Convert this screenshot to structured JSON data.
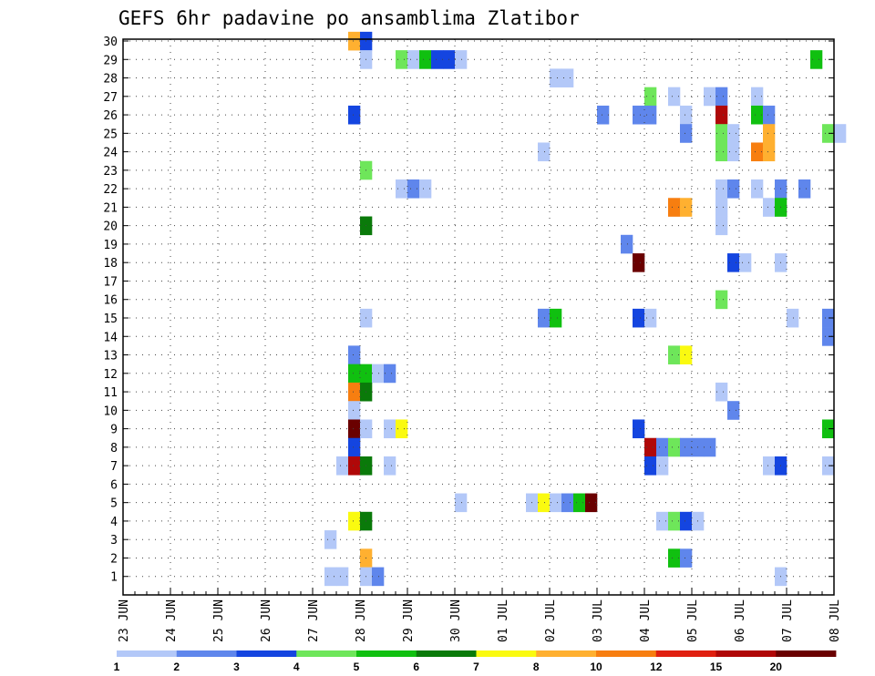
{
  "chart_data": {
    "type": "heatmap",
    "title": "GEFS 6hr padavine po ansamblima Zlatibor",
    "xlabel": "",
    "ylabel": "",
    "x_tick_labels": [
      "23 JUN",
      "24 JUN",
      "25 JUN",
      "26 JUN",
      "27 JUN",
      "28 JUN",
      "29 JUN",
      "30 JUN",
      "01 JUL",
      "02 JUL",
      "03 JUL",
      "04 JUL",
      "05 JUL",
      "06 JUL",
      "07 JUL",
      "08 JUL"
    ],
    "x_range_days": [
      0,
      15
    ],
    "y_tick_labels": [
      "1",
      "2",
      "3",
      "4",
      "5",
      "6",
      "7",
      "8",
      "9",
      "10",
      "11",
      "12",
      "13",
      "14",
      "15",
      "16",
      "17",
      "18",
      "19",
      "20",
      "21",
      "22",
      "23",
      "24",
      "25",
      "26",
      "27",
      "28",
      "29",
      "30"
    ],
    "y_range": [
      0,
      30
    ],
    "grid": true,
    "legend_placement": "bottom",
    "color_scale": {
      "labels": [
        "1",
        "2",
        "3",
        "4",
        "5",
        "6",
        "7",
        "8",
        "10",
        "12",
        "15",
        "20"
      ],
      "colors": [
        "#b3c8f8",
        "#5f86ec",
        "#1445e0",
        "#6ee65a",
        "#10c010",
        "#0a7a0a",
        "#fafa10",
        "#ffb030",
        "#f77e10",
        "#e02010",
        "#b00808",
        "#6a0000"
      ]
    },
    "cells": [
      {
        "m": 30,
        "t": 4.75,
        "c": 7
      },
      {
        "m": 30,
        "t": 5.0,
        "c": 2
      },
      {
        "m": 29,
        "t": 5.0,
        "c": 0
      },
      {
        "m": 29,
        "t": 5.75,
        "c": 3
      },
      {
        "m": 29,
        "t": 6.0,
        "c": 0
      },
      {
        "m": 29,
        "t": 6.25,
        "c": 4
      },
      {
        "m": 29,
        "t": 6.5,
        "c": 2
      },
      {
        "m": 29,
        "t": 6.75,
        "c": 2
      },
      {
        "m": 29,
        "t": 7.0,
        "c": 0
      },
      {
        "m": 29,
        "t": 14.5,
        "c": 4
      },
      {
        "m": 28,
        "t": 9.0,
        "c": 0
      },
      {
        "m": 28,
        "t": 9.25,
        "c": 0
      },
      {
        "m": 27,
        "t": 11.0,
        "c": 3
      },
      {
        "m": 27,
        "t": 11.5,
        "c": 0
      },
      {
        "m": 27,
        "t": 12.25,
        "c": 0
      },
      {
        "m": 27,
        "t": 12.5,
        "c": 1
      },
      {
        "m": 27,
        "t": 13.25,
        "c": 0
      },
      {
        "m": 26,
        "t": 4.75,
        "c": 2
      },
      {
        "m": 26,
        "t": 10.0,
        "c": 1
      },
      {
        "m": 26,
        "t": 10.75,
        "c": 1
      },
      {
        "m": 26,
        "t": 11.0,
        "c": 1
      },
      {
        "m": 26,
        "t": 11.75,
        "c": 0
      },
      {
        "m": 26,
        "t": 12.5,
        "c": 10
      },
      {
        "m": 26,
        "t": 13.25,
        "c": 4
      },
      {
        "m": 26,
        "t": 13.5,
        "c": 1
      },
      {
        "m": 25,
        "t": 11.75,
        "c": 1
      },
      {
        "m": 25,
        "t": 12.5,
        "c": 3
      },
      {
        "m": 25,
        "t": 12.75,
        "c": 0
      },
      {
        "m": 25,
        "t": 13.5,
        "c": 7
      },
      {
        "m": 25,
        "t": 14.75,
        "c": 3
      },
      {
        "m": 25,
        "t": 15.0,
        "c": 0
      },
      {
        "m": 24,
        "t": 8.75,
        "c": 0
      },
      {
        "m": 24,
        "t": 12.5,
        "c": 3
      },
      {
        "m": 24,
        "t": 12.75,
        "c": 0
      },
      {
        "m": 24,
        "t": 13.25,
        "c": 8
      },
      {
        "m": 24,
        "t": 13.5,
        "c": 7
      },
      {
        "m": 23,
        "t": 5.0,
        "c": 3
      },
      {
        "m": 22,
        "t": 5.75,
        "c": 0
      },
      {
        "m": 22,
        "t": 6.0,
        "c": 1
      },
      {
        "m": 22,
        "t": 6.25,
        "c": 0
      },
      {
        "m": 22,
        "t": 12.5,
        "c": 0
      },
      {
        "m": 22,
        "t": 12.75,
        "c": 1
      },
      {
        "m": 22,
        "t": 13.25,
        "c": 0
      },
      {
        "m": 22,
        "t": 13.75,
        "c": 1
      },
      {
        "m": 22,
        "t": 14.25,
        "c": 1
      },
      {
        "m": 21,
        "t": 11.5,
        "c": 8
      },
      {
        "m": 21,
        "t": 11.75,
        "c": 7
      },
      {
        "m": 21,
        "t": 12.5,
        "c": 0
      },
      {
        "m": 21,
        "t": 13.5,
        "c": 0
      },
      {
        "m": 21,
        "t": 13.75,
        "c": 4
      },
      {
        "m": 20,
        "t": 5.0,
        "c": 5
      },
      {
        "m": 20,
        "t": 12.5,
        "c": 0
      },
      {
        "m": 19,
        "t": 10.5,
        "c": 1
      },
      {
        "m": 18,
        "t": 10.75,
        "c": 11
      },
      {
        "m": 18,
        "t": 12.75,
        "c": 2
      },
      {
        "m": 18,
        "t": 13.0,
        "c": 0
      },
      {
        "m": 18,
        "t": 13.75,
        "c": 0
      },
      {
        "m": 16,
        "t": 12.5,
        "c": 3
      },
      {
        "m": 15,
        "t": 5.0,
        "c": 0
      },
      {
        "m": 15,
        "t": 8.75,
        "c": 1
      },
      {
        "m": 15,
        "t": 9.0,
        "c": 4
      },
      {
        "m": 15,
        "t": 10.75,
        "c": 2
      },
      {
        "m": 15,
        "t": 11.0,
        "c": 0
      },
      {
        "m": 15,
        "t": 14.0,
        "c": 0
      },
      {
        "m": 15,
        "t": 14.75,
        "c": 1
      },
      {
        "m": 14,
        "t": 14.75,
        "c": 1
      },
      {
        "m": 13,
        "t": 4.75,
        "c": 1
      },
      {
        "m": 13,
        "t": 11.5,
        "c": 3
      },
      {
        "m": 13,
        "t": 11.75,
        "c": 6
      },
      {
        "m": 12,
        "t": 4.75,
        "c": 4
      },
      {
        "m": 12,
        "t": 5.0,
        "c": 4
      },
      {
        "m": 12,
        "t": 5.25,
        "c": 0
      },
      {
        "m": 12,
        "t": 5.5,
        "c": 1
      },
      {
        "m": 11,
        "t": 4.75,
        "c": 8
      },
      {
        "m": 11,
        "t": 5.0,
        "c": 5
      },
      {
        "m": 11,
        "t": 12.5,
        "c": 0
      },
      {
        "m": 10,
        "t": 4.75,
        "c": 0
      },
      {
        "m": 10,
        "t": 12.75,
        "c": 1
      },
      {
        "m": 9,
        "t": 4.75,
        "c": 11
      },
      {
        "m": 9,
        "t": 5.0,
        "c": 0
      },
      {
        "m": 9,
        "t": 5.5,
        "c": 0
      },
      {
        "m": 9,
        "t": 5.75,
        "c": 6
      },
      {
        "m": 9,
        "t": 10.75,
        "c": 2
      },
      {
        "m": 9,
        "t": 14.75,
        "c": 4
      },
      {
        "m": 8,
        "t": 4.75,
        "c": 2
      },
      {
        "m": 8,
        "t": 11.0,
        "c": 10
      },
      {
        "m": 8,
        "t": 11.25,
        "c": 1
      },
      {
        "m": 8,
        "t": 11.5,
        "c": 3
      },
      {
        "m": 8,
        "t": 11.75,
        "c": 1
      },
      {
        "m": 8,
        "t": 12.0,
        "c": 1
      },
      {
        "m": 8,
        "t": 12.25,
        "c": 1
      },
      {
        "m": 7,
        "t": 4.5,
        "c": 0
      },
      {
        "m": 7,
        "t": 4.75,
        "c": 10
      },
      {
        "m": 7,
        "t": 5.0,
        "c": 5
      },
      {
        "m": 7,
        "t": 5.5,
        "c": 0
      },
      {
        "m": 7,
        "t": 11.0,
        "c": 2
      },
      {
        "m": 7,
        "t": 11.25,
        "c": 0
      },
      {
        "m": 7,
        "t": 13.5,
        "c": 0
      },
      {
        "m": 7,
        "t": 13.75,
        "c": 2
      },
      {
        "m": 7,
        "t": 14.75,
        "c": 0
      },
      {
        "m": 5,
        "t": 7.0,
        "c": 0
      },
      {
        "m": 5,
        "t": 8.5,
        "c": 0
      },
      {
        "m": 5,
        "t": 8.75,
        "c": 6
      },
      {
        "m": 5,
        "t": 9.0,
        "c": 0
      },
      {
        "m": 5,
        "t": 9.25,
        "c": 1
      },
      {
        "m": 5,
        "t": 9.5,
        "c": 4
      },
      {
        "m": 5,
        "t": 9.75,
        "c": 11
      },
      {
        "m": 4,
        "t": 4.75,
        "c": 6
      },
      {
        "m": 4,
        "t": 5.0,
        "c": 5
      },
      {
        "m": 4,
        "t": 11.25,
        "c": 0
      },
      {
        "m": 4,
        "t": 11.5,
        "c": 3
      },
      {
        "m": 4,
        "t": 11.75,
        "c": 2
      },
      {
        "m": 4,
        "t": 12.0,
        "c": 0
      },
      {
        "m": 3,
        "t": 4.25,
        "c": 0
      },
      {
        "m": 2,
        "t": 5.0,
        "c": 7
      },
      {
        "m": 2,
        "t": 11.5,
        "c": 4
      },
      {
        "m": 2,
        "t": 11.75,
        "c": 1
      },
      {
        "m": 1,
        "t": 4.25,
        "c": 0
      },
      {
        "m": 1,
        "t": 4.5,
        "c": 0
      },
      {
        "m": 1,
        "t": 5.0,
        "c": 0
      },
      {
        "m": 1,
        "t": 5.25,
        "c": 1
      },
      {
        "m": 1,
        "t": 13.75,
        "c": 0
      }
    ]
  }
}
